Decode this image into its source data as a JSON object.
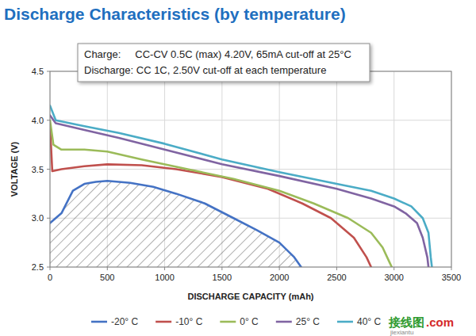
{
  "chart_data": {
    "type": "line",
    "title": "Discharge Characteristics (by temperature)",
    "annotations": [
      "Charge:     CC-CV 0.5C (max) 4.20V, 65mA cut-off at 25°C",
      "Discharge: CC 1C, 2.50V cut-off at each temperature"
    ],
    "x_label": "DISCHARGE CAPACITY (mAh)",
    "y_label": "VOLTAGE (V)",
    "xlim": [
      0,
      3500
    ],
    "xticks": [
      0,
      500,
      1000,
      1500,
      2000,
      2500,
      3000,
      3500
    ],
    "ylim": [
      2.5,
      4.5
    ],
    "yticks": [
      2.5,
      {
        "value": 3,
        "label": "3.0"
      },
      3.5,
      {
        "value": 4,
        "label": "4.0"
      },
      4.5
    ],
    "grid": true,
    "legend": "bottom",
    "watermark": [
      "接线图",
      ".com",
      "jiexiantu"
    ],
    "series": [
      {
        "name": "-20° C",
        "color": "#4472c4",
        "x": [
          0,
          50,
          100,
          200,
          300,
          400,
          500,
          700,
          900,
          1100,
          1350,
          1600,
          1800,
          2000,
          2130,
          2190
        ],
        "values": [
          2.95,
          3.0,
          3.05,
          3.28,
          3.35,
          3.37,
          3.38,
          3.36,
          3.32,
          3.25,
          3.15,
          3.0,
          2.88,
          2.75,
          2.6,
          2.5
        ]
      },
      {
        "name": "-10° C",
        "color": "#c0504d",
        "x": [
          0,
          20,
          100,
          300,
          500,
          800,
          1100,
          1500,
          1900,
          2200,
          2450,
          2650,
          2760,
          2800
        ],
        "values": [
          3.95,
          3.48,
          3.5,
          3.53,
          3.55,
          3.54,
          3.5,
          3.42,
          3.3,
          3.15,
          3.0,
          2.8,
          2.6,
          2.5
        ]
      },
      {
        "name": "0° C",
        "color": "#9bbb59",
        "x": [
          0,
          30,
          100,
          300,
          500,
          800,
          1200,
          1600,
          2000,
          2300,
          2600,
          2800,
          2900,
          2960,
          2980
        ],
        "values": [
          4.0,
          3.75,
          3.7,
          3.7,
          3.68,
          3.6,
          3.5,
          3.4,
          3.28,
          3.15,
          3.0,
          2.85,
          2.7,
          2.55,
          2.5
        ]
      },
      {
        "name": "25° C",
        "color": "#8064a2",
        "x": [
          0,
          50,
          300,
          600,
          1000,
          1500,
          2000,
          2500,
          2800,
          3000,
          3100,
          3200,
          3250,
          3290,
          3300
        ],
        "values": [
          4.05,
          3.97,
          3.9,
          3.82,
          3.7,
          3.55,
          3.43,
          3.3,
          3.2,
          3.12,
          3.05,
          2.95,
          2.8,
          2.6,
          2.5
        ]
      },
      {
        "name": "40° C",
        "color": "#4bacc6",
        "x": [
          0,
          50,
          300,
          600,
          1000,
          1500,
          2000,
          2500,
          2800,
          3000,
          3150,
          3250,
          3300,
          3320,
          3330
        ],
        "values": [
          4.15,
          4.0,
          3.94,
          3.87,
          3.76,
          3.6,
          3.47,
          3.35,
          3.28,
          3.2,
          3.12,
          3.0,
          2.85,
          2.6,
          2.5
        ]
      }
    ]
  }
}
